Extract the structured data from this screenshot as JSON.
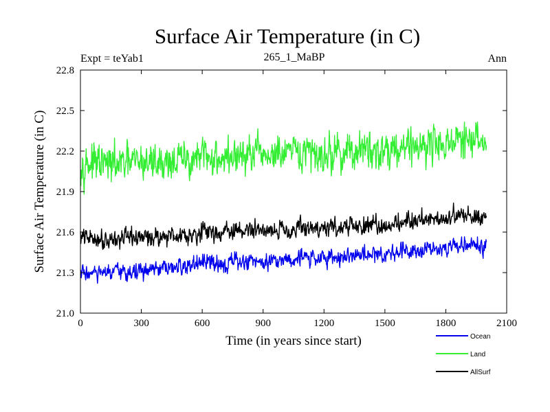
{
  "chart_data": {
    "type": "line",
    "title": "Surface Air Temperature (in C)",
    "subtitle": "265_1_MaBP",
    "top_left_label": "Expt = teYab1",
    "top_right_label": "Ann",
    "xlabel": "Time (in years since start)",
    "ylabel": "Surface Air Temperature (in C)",
    "xlim": [
      0,
      2100
    ],
    "ylim": [
      21.0,
      22.8
    ],
    "xticks": [
      0,
      300,
      600,
      900,
      1200,
      1500,
      1800,
      2100
    ],
    "yticks": [
      21.0,
      21.3,
      21.6,
      21.9,
      22.2,
      22.5,
      22.8
    ],
    "xtick_labels": [
      "0",
      "300",
      "600",
      "900",
      "1200",
      "1500",
      "1800",
      "2100"
    ],
    "ytick_labels": [
      "21.0",
      "21.3",
      "21.6",
      "21.9",
      "22.2",
      "22.5",
      "22.8"
    ],
    "x_end": 2000,
    "legend_position": "bottom-right",
    "series": [
      {
        "name": "Land",
        "color": "#33ee33",
        "x": [
          0,
          100,
          200,
          300,
          400,
          500,
          600,
          700,
          800,
          900,
          1000,
          1100,
          1200,
          1300,
          1400,
          1500,
          1600,
          1700,
          1800,
          1900,
          2000
        ],
        "values": [
          22.12,
          22.1,
          22.1,
          22.12,
          22.12,
          22.13,
          22.15,
          22.15,
          22.16,
          22.17,
          22.17,
          22.18,
          22.18,
          22.19,
          22.2,
          22.21,
          22.24,
          22.25,
          22.26,
          22.27,
          22.27
        ],
        "noise": 0.14
      },
      {
        "name": "AllSurf",
        "color": "#000000",
        "x": [
          0,
          100,
          200,
          300,
          400,
          500,
          600,
          700,
          800,
          900,
          1000,
          1100,
          1200,
          1300,
          1400,
          1500,
          1600,
          1700,
          1800,
          1900,
          2000
        ],
        "values": [
          21.56,
          21.55,
          21.55,
          21.56,
          21.57,
          21.58,
          21.6,
          21.6,
          21.61,
          21.62,
          21.62,
          21.63,
          21.63,
          21.64,
          21.64,
          21.65,
          21.68,
          21.7,
          21.71,
          21.72,
          21.72
        ],
        "noise": 0.07
      },
      {
        "name": "Ocean",
        "color": "#0000ee",
        "x": [
          0,
          100,
          200,
          300,
          400,
          500,
          600,
          700,
          800,
          900,
          1000,
          1100,
          1200,
          1300,
          1400,
          1500,
          1600,
          1700,
          1800,
          1900,
          2000
        ],
        "values": [
          21.3,
          21.29,
          21.3,
          21.31,
          21.32,
          21.34,
          21.37,
          21.37,
          21.38,
          21.39,
          21.4,
          21.41,
          21.41,
          21.42,
          21.43,
          21.44,
          21.47,
          21.48,
          21.49,
          21.5,
          21.5
        ],
        "noise": 0.065
      }
    ],
    "legend": [
      {
        "name": "Ocean",
        "color": "#0000ee"
      },
      {
        "name": "Land",
        "color": "#33ee33"
      },
      {
        "name": "AllSurf",
        "color": "#000000"
      }
    ]
  }
}
